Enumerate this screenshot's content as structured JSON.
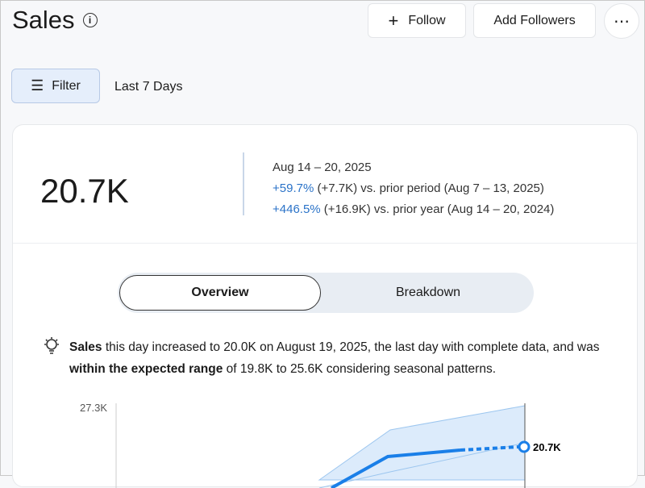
{
  "header": {
    "title": "Sales",
    "info_icon": "info-icon",
    "follow_label": "Follow",
    "add_followers_label": "Add Followers",
    "more_icon": "ellipsis-icon"
  },
  "filters": {
    "filter_label": "Filter",
    "range_label": "Last 7 Days"
  },
  "kpi": {
    "value": "20.7K",
    "period": "Aug 14 – 20, 2025",
    "prior_period_change": "+59.7%",
    "prior_period_text": " (+7.7K) vs. prior period (Aug 7 – 13, 2025)",
    "prior_year_change": "+446.5%",
    "prior_year_text": " (+16.9K) vs. prior year (Aug 14 – 20, 2024)"
  },
  "tabs": [
    {
      "label": "Overview",
      "selected": true
    },
    {
      "label": "Breakdown",
      "selected": false
    }
  ],
  "insight": {
    "p1": "Sales",
    "p2": " this day increased to 20.0K on August 19, 2025, the last day with complete data, and was ",
    "p3": "within the expected range",
    "p4": " of 19.8K to 25.6K considering seasonal patterns."
  },
  "chart_data": {
    "type": "line",
    "y_tick_labels": [
      "27.3K"
    ],
    "end_label": "20.7K",
    "series_color": "#1a7fe8",
    "band_color": "#dcebfb",
    "last_value": "20.7K",
    "last_segment": "dashed (incomplete)"
  }
}
